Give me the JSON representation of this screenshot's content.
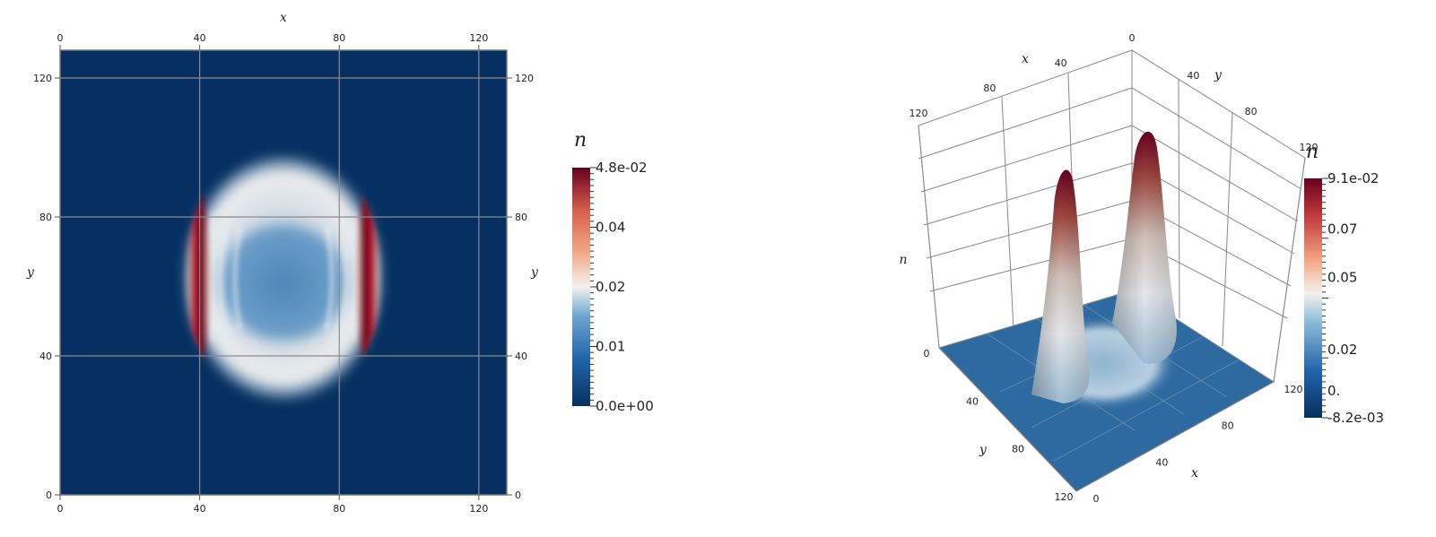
{
  "chart_data": [
    {
      "type": "heatmap",
      "title": "",
      "xlabel": "x",
      "ylabel": "y",
      "xlim": [
        0,
        128
      ],
      "ylim": [
        0,
        128
      ],
      "xticks": [
        "0",
        "40",
        "80",
        "120"
      ],
      "yticks": [
        "0",
        "40",
        "80",
        "120"
      ],
      "grid": true,
      "colormap": "blue-white-red (RdBu reversed)",
      "colorbar": {
        "title": "n",
        "range": [
          0.0,
          0.048
        ],
        "tick_labels": [
          "4.8e-02",
          "0.04",
          "0.02",
          "0.01",
          "0.0e+00"
        ]
      },
      "description_values": {
        "ring_center": [
          62,
          60
        ],
        "peak_value": 0.048,
        "background_value": 0.0
      }
    },
    {
      "type": "surface",
      "title": "",
      "xlabel": "x",
      "ylabel": "y",
      "zlabel": "n",
      "xlim": [
        0,
        120
      ],
      "ylim": [
        0,
        120
      ],
      "xticks": [
        "0",
        "40",
        "80",
        "120"
      ],
      "yticks": [
        "0",
        "40",
        "80",
        "120"
      ],
      "colormap": "blue-white-red (RdBu reversed)",
      "colorbar": {
        "title": "n",
        "range": [
          -0.0082,
          0.091
        ],
        "tick_labels": [
          "9.1e-02",
          "0.07",
          "0.05",
          "0.02",
          "0.",
          "-8.2e-03"
        ]
      },
      "peaks": [
        {
          "x": 42,
          "y": 60,
          "value": 0.085
        },
        {
          "x": 82,
          "y": 60,
          "value": 0.091
        }
      ]
    }
  ]
}
